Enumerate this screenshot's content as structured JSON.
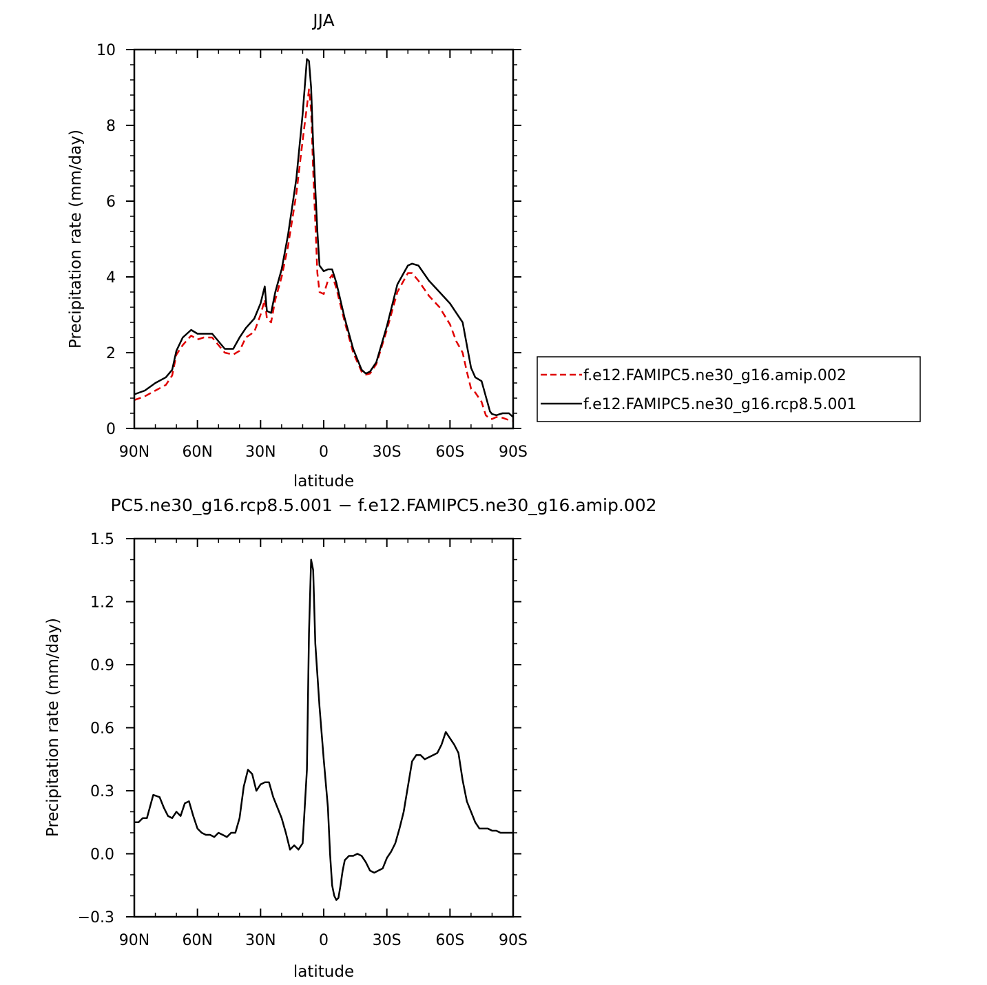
{
  "chart_data": [
    {
      "type": "line",
      "title": "JJA",
      "xlabel": "latitude",
      "ylabel": "Precipitation rate (mm/day)",
      "xlim": [
        90,
        -90
      ],
      "ylim": [
        0,
        10
      ],
      "x_ticks": [
        {
          "value": 90,
          "label": "90N"
        },
        {
          "value": 60,
          "label": "60N"
        },
        {
          "value": 30,
          "label": "30N"
        },
        {
          "value": 0,
          "label": "0"
        },
        {
          "value": -30,
          "label": "30S"
        },
        {
          "value": -60,
          "label": "60S"
        },
        {
          "value": -90,
          "label": "90S"
        }
      ],
      "y_ticks": [
        {
          "value": 0,
          "label": "0"
        },
        {
          "value": 2,
          "label": "2"
        },
        {
          "value": 4,
          "label": "4"
        },
        {
          "value": 6,
          "label": "6"
        },
        {
          "value": 8,
          "label": "8"
        },
        {
          "value": 10,
          "label": "10"
        }
      ],
      "legend_position": "right",
      "series": [
        {
          "name": "f.e12.FAMIPC5.ne30_g16.amip.002",
          "color": "#e00000",
          "dash": "dashed",
          "x": [
            90,
            85,
            80,
            75,
            72,
            70,
            67,
            63,
            60,
            57,
            53,
            50,
            47,
            43,
            40,
            37,
            33,
            30,
            28,
            27,
            25,
            23,
            20,
            17,
            13,
            10,
            8,
            7,
            6,
            5,
            3,
            2,
            0,
            -2,
            -4,
            -6,
            -10,
            -14,
            -18,
            -20,
            -22,
            -25,
            -30,
            -35,
            -40,
            -42,
            -45,
            -50,
            -55,
            -60,
            -63,
            -66,
            -68,
            -70,
            -72,
            -75,
            -77,
            -79,
            -80,
            -82,
            -85,
            -88,
            -90
          ],
          "y": [
            0.75,
            0.85,
            1.0,
            1.15,
            1.4,
            1.95,
            2.2,
            2.45,
            2.35,
            2.4,
            2.4,
            2.2,
            2.0,
            1.95,
            2.05,
            2.4,
            2.55,
            3.0,
            3.4,
            2.9,
            2.8,
            3.4,
            4.0,
            4.8,
            6.2,
            7.6,
            8.5,
            8.95,
            8.4,
            6.8,
            4.1,
            3.6,
            3.55,
            3.9,
            4.05,
            3.7,
            2.8,
            2.0,
            1.5,
            1.42,
            1.45,
            1.7,
            2.6,
            3.6,
            4.1,
            4.1,
            3.9,
            3.5,
            3.2,
            2.75,
            2.3,
            2.0,
            1.5,
            1.05,
            0.95,
            0.7,
            0.35,
            0.25,
            0.25,
            0.3,
            0.28,
            0.22,
            0.2
          ]
        },
        {
          "name": "f.e12.FAMIPC5.ne30_g16.rcp8.5.001",
          "color": "#000000",
          "dash": "solid",
          "x": [
            90,
            85,
            80,
            75,
            72,
            70,
            67,
            63,
            60,
            57,
            53,
            50,
            47,
            43,
            40,
            37,
            33,
            30,
            28,
            27,
            25,
            23,
            20,
            17,
            13,
            10,
            8,
            7,
            6,
            5,
            3,
            2,
            0,
            -2,
            -4,
            -6,
            -10,
            -14,
            -18,
            -20,
            -22,
            -25,
            -30,
            -35,
            -40,
            -42,
            -45,
            -50,
            -55,
            -60,
            -63,
            -66,
            -68,
            -70,
            -72,
            -75,
            -77,
            -79,
            -80,
            -82,
            -85,
            -88,
            -90
          ],
          "y": [
            0.9,
            1.0,
            1.2,
            1.35,
            1.55,
            2.05,
            2.4,
            2.6,
            2.5,
            2.5,
            2.5,
            2.3,
            2.1,
            2.1,
            2.4,
            2.65,
            2.9,
            3.3,
            3.75,
            3.1,
            3.05,
            3.6,
            4.2,
            5.1,
            6.6,
            8.3,
            9.75,
            9.7,
            9.0,
            7.5,
            5.2,
            4.3,
            4.15,
            4.2,
            4.2,
            3.85,
            2.9,
            2.1,
            1.55,
            1.45,
            1.5,
            1.75,
            2.7,
            3.8,
            4.3,
            4.35,
            4.3,
            3.9,
            3.6,
            3.3,
            3.05,
            2.8,
            2.2,
            1.6,
            1.35,
            1.25,
            0.85,
            0.45,
            0.38,
            0.35,
            0.4,
            0.4,
            0.3
          ]
        }
      ]
    },
    {
      "type": "line",
      "title": "PC5.ne30_g16.rcp8.5.001 − f.e12.FAMIPC5.ne30_g16.amip.002",
      "xlabel": "latitude",
      "ylabel": "Precipitation rate (mm/day)",
      "xlim": [
        90,
        -90
      ],
      "ylim": [
        -0.3,
        1.5
      ],
      "x_ticks": [
        {
          "value": 90,
          "label": "90N"
        },
        {
          "value": 60,
          "label": "60N"
        },
        {
          "value": 30,
          "label": "30N"
        },
        {
          "value": 0,
          "label": "0"
        },
        {
          "value": -30,
          "label": "30S"
        },
        {
          "value": -60,
          "label": "60S"
        },
        {
          "value": -90,
          "label": "90S"
        }
      ],
      "y_ticks": [
        {
          "value": -0.3,
          "label": "−0.3"
        },
        {
          "value": 0.0,
          "label": "0.0"
        },
        {
          "value": 0.3,
          "label": "0.3"
        },
        {
          "value": 0.6,
          "label": "0.6"
        },
        {
          "value": 0.9,
          "label": "0.9"
        },
        {
          "value": 1.2,
          "label": "1.2"
        },
        {
          "value": 1.5,
          "label": "1.5"
        }
      ],
      "series": [
        {
          "color": "#000000",
          "dash": "solid",
          "x": [
            90,
            88,
            86,
            84,
            81,
            78,
            76,
            74,
            72,
            70,
            68,
            66,
            64,
            62,
            60,
            58,
            56,
            54,
            52,
            50,
            48,
            46,
            44,
            42,
            40,
            38,
            36,
            34,
            32,
            30,
            28,
            26,
            24,
            22,
            20,
            18,
            16,
            14,
            12,
            10,
            8,
            7,
            6,
            5,
            4,
            2,
            0,
            -2,
            -3,
            -4,
            -5,
            -6,
            -7,
            -8,
            -9,
            -10,
            -12,
            -14,
            -16,
            -18,
            -20,
            -22,
            -24,
            -26,
            -28,
            -30,
            -32,
            -34,
            -36,
            -38,
            -40,
            -42,
            -44,
            -46,
            -48,
            -50,
            -52,
            -54,
            -56,
            -58,
            -60,
            -62,
            -64,
            -66,
            -68,
            -70,
            -72,
            -74,
            -76,
            -78,
            -80,
            -82,
            -84,
            -86,
            -88,
            -90
          ],
          "y": [
            0.15,
            0.15,
            0.17,
            0.17,
            0.28,
            0.27,
            0.22,
            0.18,
            0.17,
            0.2,
            0.18,
            0.24,
            0.25,
            0.18,
            0.12,
            0.1,
            0.09,
            0.09,
            0.08,
            0.1,
            0.09,
            0.08,
            0.1,
            0.1,
            0.17,
            0.32,
            0.4,
            0.38,
            0.3,
            0.33,
            0.34,
            0.34,
            0.27,
            0.22,
            0.17,
            0.1,
            0.02,
            0.04,
            0.02,
            0.05,
            0.4,
            1.05,
            1.4,
            1.35,
            1.0,
            0.7,
            0.45,
            0.22,
            0.0,
            -0.15,
            -0.2,
            -0.22,
            -0.21,
            -0.15,
            -0.08,
            -0.03,
            -0.01,
            -0.01,
            0.0,
            -0.01,
            -0.04,
            -0.08,
            -0.09,
            -0.08,
            -0.07,
            -0.02,
            0.01,
            0.05,
            0.12,
            0.2,
            0.32,
            0.44,
            0.47,
            0.47,
            0.45,
            0.46,
            0.47,
            0.48,
            0.52,
            0.58,
            0.55,
            0.52,
            0.48,
            0.35,
            0.25,
            0.2,
            0.15,
            0.12,
            0.12,
            0.12,
            0.11,
            0.11,
            0.1,
            0.1,
            0.1,
            0.1
          ]
        }
      ]
    }
  ]
}
